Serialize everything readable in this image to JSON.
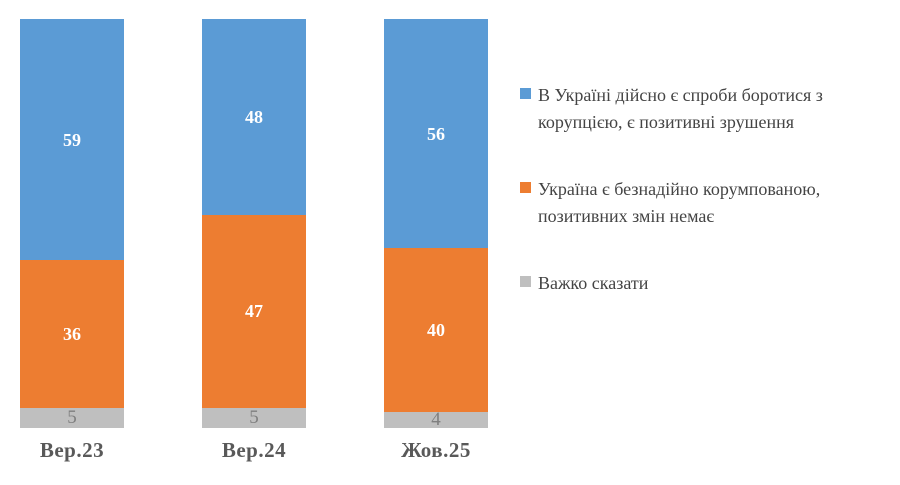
{
  "chart_data": {
    "type": "bar",
    "stacked": true,
    "unit": "percent",
    "categories": [
      "Вер.23",
      "Вер.24",
      "Жов.25"
    ],
    "series": [
      {
        "name": "В Україні дійсно є спроби боротися з корупцією, є позитивні зрушення",
        "color": "#5B9BD5",
        "values": [
          59,
          48,
          56
        ]
      },
      {
        "name": "Україна є безнадійно корумпованою, позитивних змін немає",
        "color": "#ED7D31",
        "values": [
          36,
          47,
          40
        ]
      },
      {
        "name": "Важко сказати",
        "color": "#BFBFBF",
        "values": [
          5,
          5,
          4
        ]
      }
    ],
    "ylim": [
      0,
      100
    ],
    "grid": false,
    "legend_position": "right",
    "value_labels": "inside",
    "bar_order_top_to_bottom": [
      "В Україні дійсно є спроби боротися з корупцією, є позитивні зрушення",
      "Україна є безнадійно корумпованою, позитивних змін немає",
      "Важко сказати"
    ]
  },
  "legend": {
    "items": [
      {
        "lines": [
          "В Україні дійсно є спроби боротися з",
          "корупцією, є позитивні зрушення"
        ],
        "color": "#5B9BD5"
      },
      {
        "lines": [
          "Україна є безнадійно корумпованою,",
          "позитивних змін немає"
        ],
        "color": "#ED7D31"
      },
      {
        "lines": [
          "Важко сказати",
          ""
        ],
        "color": "#BFBFBF"
      }
    ]
  },
  "colors": {
    "positive": "#5B9BD5",
    "negative": "#ED7D31",
    "neutral": "#BFBFBF",
    "axis_label_text": "#595959",
    "legend_text": "#444444",
    "value_label_light": "#FFFFFF",
    "value_label_muted": "#7F7F7F",
    "background": "#FFFFFF"
  }
}
